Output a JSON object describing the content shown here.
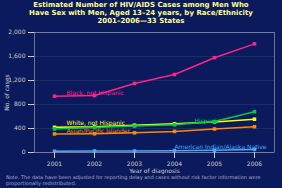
{
  "chart_data": {
    "type": "line",
    "title": "Estimated Number of HIV/AIDS Cases among Men Who\nHave Sex with Men, Aged 13–24 years, by Race/Ethnicity\n2001–2006—33 States",
    "x_label": "Year of diagnosis",
    "y_label": "No. of cases",
    "caption": "Note. The data have been adjusted for reporting delay and cases without risk factor information were\nproportionally redistributed.",
    "x": [
      2001,
      2002,
      2003,
      2004,
      2005,
      2006
    ],
    "series": [
      {
        "name": "Black, not Hispanic",
        "color": "#ff2288",
        "marker": "square",
        "values": [
          938,
          950,
          1150,
          1300,
          1580,
          1811
        ]
      },
      {
        "name": "White, not Hispanic",
        "color": "#ffff00",
        "marker": "square",
        "values": [
          420,
          430,
          455,
          478,
          510,
          555
        ]
      },
      {
        "name": "Hispanic",
        "color": "#00cc44",
        "marker": "square",
        "values": [
          392,
          418,
          440,
          462,
          515,
          680
        ]
      },
      {
        "name": "Asian/Pacific Islander",
        "color": "#ff8800",
        "marker": "square",
        "values": [
          310,
          312,
          328,
          352,
          392,
          430
        ]
      },
      {
        "name": "American Indian/Alaska Native",
        "color": "#44aaff",
        "marker": "square",
        "values": [
          20,
          25,
          25,
          30,
          38,
          52
        ]
      }
    ],
    "annotations": [
      {
        "text": "Black, not Hispanic",
        "x": 2001.3,
        "y": 960
      },
      {
        "text": "White, not Hispanic",
        "x": 2001.3,
        "y": 460
      },
      {
        "text": "Hispanic",
        "x": 2004.5,
        "y": 490
      },
      {
        "text": "Asian/Pacific Islander",
        "x": 2001.3,
        "y": 330
      },
      {
        "text": "American Indian/Alaska Native",
        "x": 2004.0,
        "y": 60
      }
    ],
    "xlim": [
      2000.5,
      2006.5
    ],
    "xticks": [
      2001,
      2002,
      2003,
      2004,
      2005,
      2006
    ],
    "ylim": [
      0,
      2000
    ],
    "yticks": [
      0,
      400,
      800,
      {
        "value": 1200,
        "label": "1,200"
      },
      {
        "value": 1600,
        "label": "1,600"
      },
      {
        "value": 2000,
        "label": "2,000"
      }
    ],
    "grid": "y"
  }
}
